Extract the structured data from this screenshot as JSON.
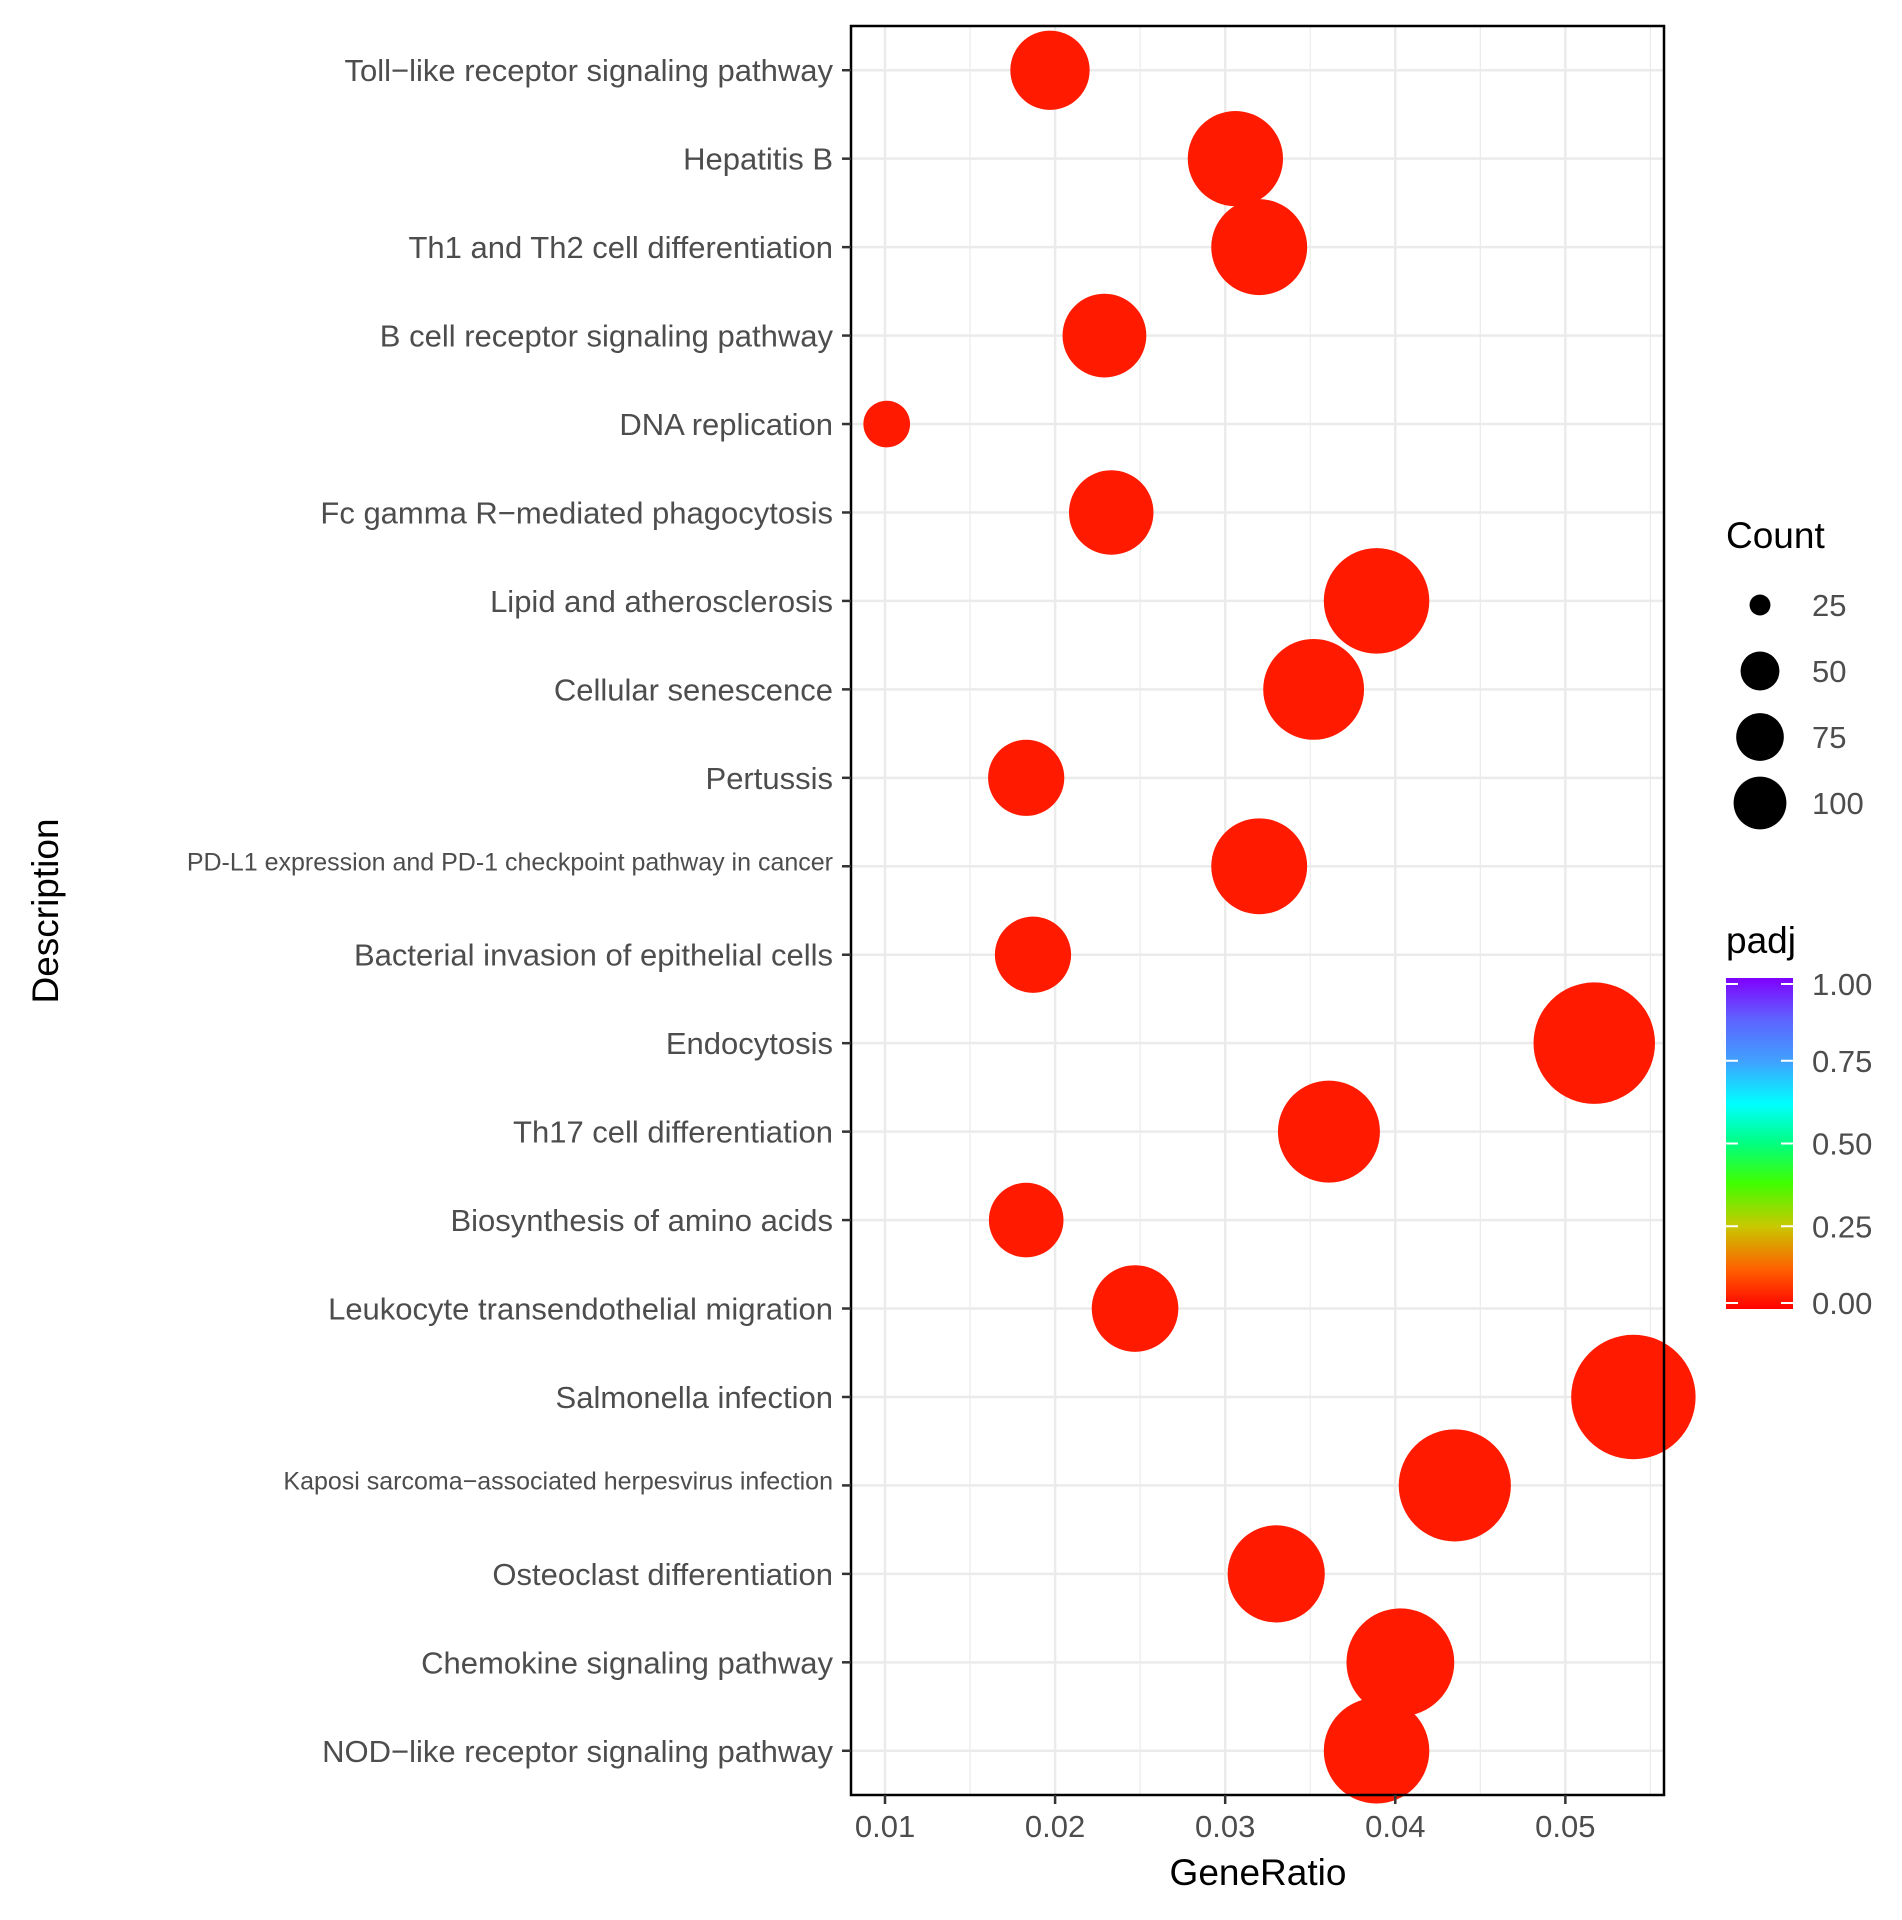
{
  "chart_data": {
    "type": "scatter",
    "xlabel": "GeneRatio",
    "ylabel": "Description",
    "xlim": [
      0.008,
      0.0558
    ],
    "xticks": [
      "0.01",
      "0.02",
      "0.03",
      "0.04",
      "0.05"
    ],
    "xtick_values": [
      0.01,
      0.02,
      0.03,
      0.04,
      0.05
    ],
    "grid": true,
    "points": [
      {
        "description": "Toll−like receptor signaling pathway",
        "gene_ratio": 0.0197,
        "count": 52,
        "padj": 0.01
      },
      {
        "description": "Hepatitis B",
        "gene_ratio": 0.0306,
        "count": 75,
        "padj": 0.01
      },
      {
        "description": "Th1 and Th2 cell differentiation",
        "gene_ratio": 0.032,
        "count": 76,
        "padj": 0.01
      },
      {
        "description": "B cell receptor signaling pathway",
        "gene_ratio": 0.0229,
        "count": 58,
        "padj": 0.01
      },
      {
        "description": "DNA replication",
        "gene_ratio": 0.0101,
        "count": 18,
        "padj": 0.01
      },
      {
        "description": "Fc gamma R−mediated phagocytosis",
        "gene_ratio": 0.0233,
        "count": 59,
        "padj": 0.01
      },
      {
        "description": "Lipid and atherosclerosis",
        "gene_ratio": 0.0389,
        "count": 92,
        "padj": 0.01
      },
      {
        "description": "Cellular senescence",
        "gene_ratio": 0.0352,
        "count": 84,
        "padj": 0.01
      },
      {
        "description": "Pertussis",
        "gene_ratio": 0.0183,
        "count": 48,
        "padj": 0.01
      },
      {
        "description": "PD-L1 expression and PD-1 checkpoint pathway in cancer",
        "gene_ratio": 0.032,
        "count": 76,
        "padj": 0.01
      },
      {
        "description": "Bacterial invasion of epithelial cells",
        "gene_ratio": 0.0187,
        "count": 48,
        "padj": 0.01
      },
      {
        "description": "Endocytosis",
        "gene_ratio": 0.0517,
        "count": 122,
        "padj": 0.01
      },
      {
        "description": "Th17 cell differentiation",
        "gene_ratio": 0.0361,
        "count": 86,
        "padj": 0.01
      },
      {
        "description": "Biosynthesis of amino acids",
        "gene_ratio": 0.0183,
        "count": 46,
        "padj": 0.01
      },
      {
        "description": "Leukocyte transendothelial migration",
        "gene_ratio": 0.0247,
        "count": 62,
        "padj": 0.01
      },
      {
        "description": "Salmonella infection",
        "gene_ratio": 0.054,
        "count": 128,
        "padj": 0.01
      },
      {
        "description": "Kaposi sarcoma−associated herpesvirus infection",
        "gene_ratio": 0.0435,
        "count": 104,
        "padj": 0.01
      },
      {
        "description": "Osteoclast differentiation",
        "gene_ratio": 0.033,
        "count": 78,
        "padj": 0.01
      },
      {
        "description": "Chemokine signaling pathway",
        "gene_ratio": 0.0403,
        "count": 96,
        "padj": 0.01
      },
      {
        "description": "NOD−like receptor signaling pathway",
        "gene_ratio": 0.0389,
        "count": 92,
        "padj": 0.01
      }
    ],
    "size_legend": {
      "title": "Count",
      "labels": [
        "25",
        "50",
        "75",
        "100"
      ],
      "values": [
        25,
        50,
        75,
        100
      ]
    },
    "color_legend": {
      "title": "padj",
      "labels": [
        "1.00",
        "0.75",
        "0.50",
        "0.25",
        "0.00"
      ],
      "values": [
        1.0,
        0.75,
        0.5,
        0.25,
        0.0
      ],
      "range": [
        0.0,
        1.0
      ]
    },
    "colors": {
      "point": "#ff1a00",
      "grid": "#ebebeb",
      "panel_border": "#000000",
      "gradient": [
        "#ff0000",
        "#ff8000",
        "#ffff00",
        "#00ff00",
        "#00ffff",
        "#0000ff",
        "#8000ff"
      ]
    }
  }
}
